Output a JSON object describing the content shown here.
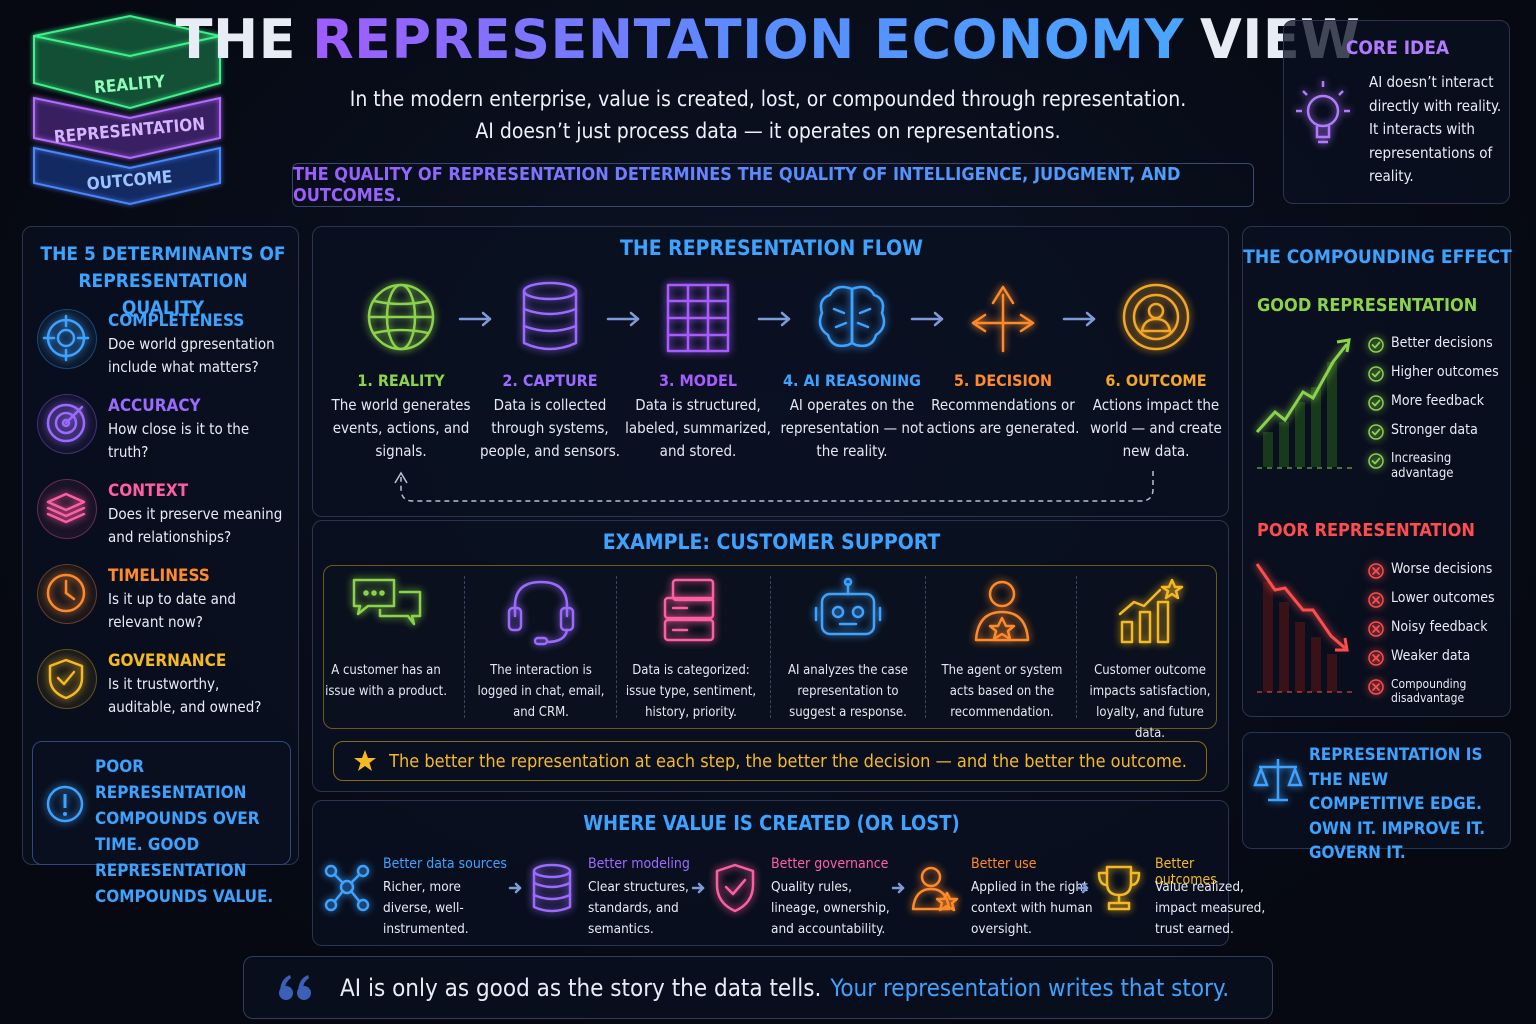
{
  "header": {
    "title_parts": [
      "THE",
      "REPRESENTATION ECONOMY",
      "VIEW"
    ],
    "subtitle_lines": [
      "In the modern enterprise, value is created, lost, or compounded through representation.",
      "AI doesn’t just process data — it operates on representations."
    ],
    "banner": "THE QUALITY OF REPRESENTATION DETERMINES THE QUALITY OF INTELLIGENCE, JUDGMENT, AND OUTCOMES."
  },
  "cube_labels": [
    "REALITY",
    "REPRESENTATION",
    "OUTCOME"
  ],
  "core_idea": {
    "title": "CORE IDEA",
    "text": "AI doesn’t interact directly with reality. It interacts with representations of reality."
  },
  "determinants": {
    "title": "THE 5 DETERMINANTS OF REPRESENTATION QUALITY",
    "items": [
      {
        "name": "COMPLETENESS",
        "text": "Doe world gpresentation include what matters?"
      },
      {
        "name": "ACCURACY",
        "text": "How close is it to the truth?"
      },
      {
        "name": "CONTEXT",
        "text": "Does it preserve meaning and relationships?"
      },
      {
        "name": "TIMELINESS",
        "text": "Is it up to date and relevant now?"
      },
      {
        "name": "GOVERNANCE",
        "text": "Is it trustworthy, auditable, and owned?"
      }
    ],
    "callout": "POOR REPRESENTATION COMPOUNDS OVER TIME. GOOD REPRESENTATION COMPOUNDS VALUE."
  },
  "flow": {
    "title": "THE REPRESENTATION FLOW",
    "steps": [
      {
        "label": "1. REALITY",
        "text": "The world generates events, actions, and signals."
      },
      {
        "label": "2. CAPTURE",
        "text": "Data is collected through systems, people, and sensors."
      },
      {
        "label": "3. MODEL",
        "text": "Data is structured, labeled, summarized, and stored."
      },
      {
        "label": "4. AI REASONING",
        "text": "AI operates on the representation — not the reality."
      },
      {
        "label": "5. DECISION",
        "text": "Recommendations or actions are generated."
      },
      {
        "label": "6. OUTCOME",
        "text": "Actions impact the world — and create new data."
      }
    ]
  },
  "example": {
    "title": "EXAMPLE: CUSTOMER SUPPORT",
    "steps": [
      "A customer has an issue with a product.",
      "The interaction is logged in chat, email, and CRM.",
      "Data is categorized: issue type, sentiment, history, priority.",
      "AI analyzes the case representation to suggest a response.",
      "The agent or system acts based on the recommendation.",
      "Customer outcome impacts satisfaction, loyalty, and future data."
    ],
    "note": "The better the representation at each step, the better the decision — and the better the outcome."
  },
  "value": {
    "title": "WHERE VALUE IS CREATED (OR LOST)",
    "items": [
      {
        "name": "Better data sources",
        "text": "Richer, more diverse, well-instrumented."
      },
      {
        "name": "Better modeling",
        "text": "Clear structures, standards, and semantics."
      },
      {
        "name": "Better governance",
        "text": "Quality rules, lineage, ownership, and accountability."
      },
      {
        "name": "Better use",
        "text": "Applied in the right context with human oversight."
      },
      {
        "name": "Better outcomes",
        "text": "Value realized, impact measured, trust earned."
      }
    ]
  },
  "compounding": {
    "title": "THE COMPOUNDING EFFECT",
    "good": {
      "title": "GOOD REPRESENTATION",
      "items": [
        "Better decisions",
        "Higher outcomes",
        "More feedback",
        "Stronger data",
        "Increasing advantage"
      ]
    },
    "poor": {
      "title": "POOR REPRESENTATION",
      "items": [
        "Worse decisions",
        "Lower outcomes",
        "Noisy feedback",
        "Weaker data",
        "Compounding disadvantage"
      ]
    }
  },
  "edge": "REPRESENTATION IS THE NEW COMPETITIVE EDGE. OWN IT. IMPROVE IT. GOVERN IT.",
  "quote": {
    "plain": "AI is only as good as the story the data tells.",
    "highlight": "Your representation writes that story."
  }
}
